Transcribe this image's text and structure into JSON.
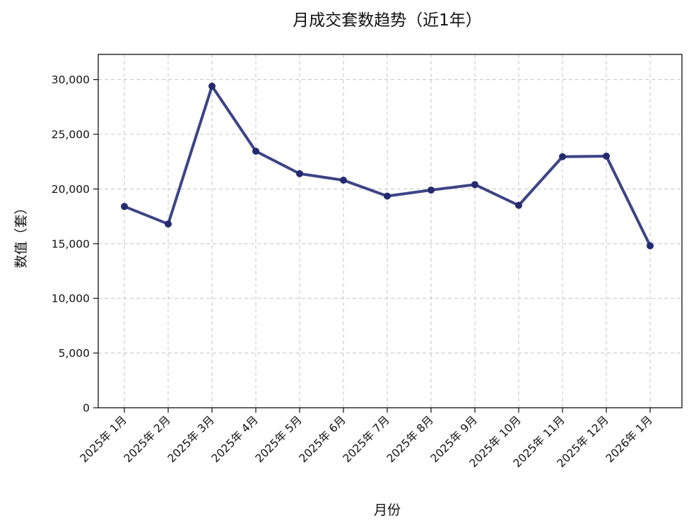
{
  "chart_data": {
    "type": "line",
    "title": "月成交套数趋势（近1年）",
    "xlabel": "月份",
    "ylabel": "数值（套）",
    "categories": [
      "2025年 1月",
      "2025年 2月",
      "2025年 3月",
      "2025年 4月",
      "2025年 5月",
      "2025年 6月",
      "2025年 7月",
      "2025年 8月",
      "2025年 9月",
      "2025年 10月",
      "2025年 11月",
      "2025年 12月",
      "2026年 1月"
    ],
    "series": [
      {
        "values": [
          18400,
          16800,
          29400,
          23450,
          21400,
          20800,
          19350,
          19900,
          20400,
          18500,
          22950,
          23000,
          14800
        ],
        "color": "#3d4485",
        "marker_color": "#252a70"
      }
    ],
    "ylim": [
      0,
      32300
    ],
    "yticks": [
      0,
      5000,
      10000,
      15000,
      20000,
      25000,
      30000
    ],
    "ytick_labels": [
      "0",
      "5,000",
      "10,000",
      "15,000",
      "20,000",
      "25,000",
      "30,000"
    ],
    "grid": true
  }
}
